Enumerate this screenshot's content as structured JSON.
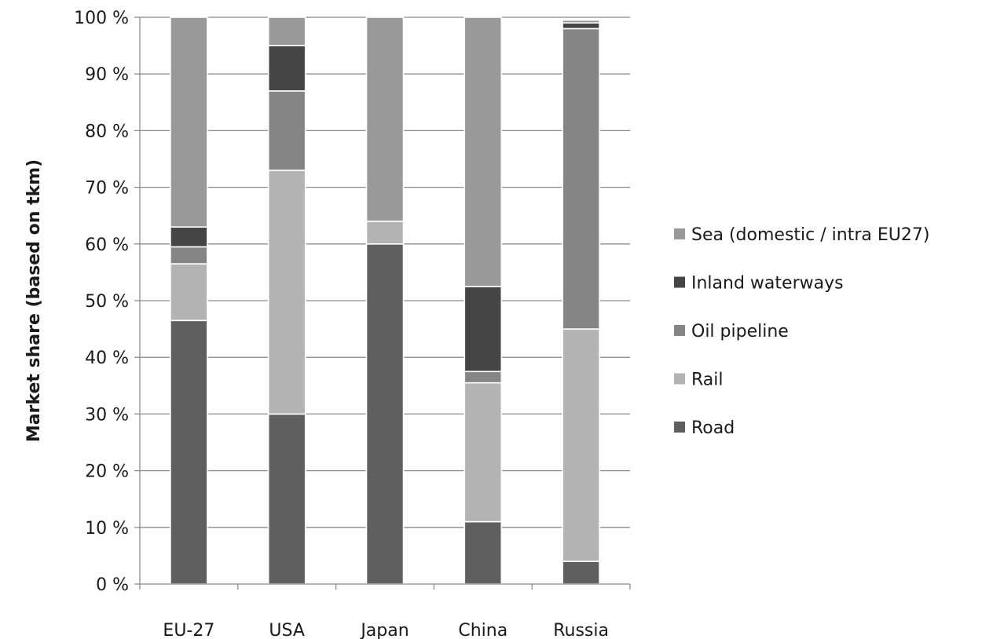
{
  "chart_data": {
    "type": "bar",
    "stacked": true,
    "categories": [
      "EU-27",
      "USA",
      "Japan",
      "China",
      "Russia"
    ],
    "ylabel": "Market share (based on tkm)",
    "xlabel": "",
    "ylim": [
      0,
      100
    ],
    "yticks": [
      "0 %",
      "10 %",
      "20 %",
      "30 %",
      "40 %",
      "50 %",
      "60 %",
      "70 %",
      "80 %",
      "90 %",
      "100 %"
    ],
    "grid": true,
    "legend_position": "right",
    "series": [
      {
        "name": "Road",
        "color": "#5f5f5f",
        "values": [
          46.5,
          30,
          60,
          11,
          4
        ]
      },
      {
        "name": "Rail",
        "color": "#b3b3b3",
        "values": [
          10,
          43,
          4,
          24.5,
          41
        ]
      },
      {
        "name": "Oil pipeline",
        "color": "#858585",
        "values": [
          3,
          14,
          0,
          2,
          53
        ]
      },
      {
        "name": "Inland waterways",
        "color": "#454545",
        "values": [
          3.5,
          8,
          0,
          15,
          1
        ]
      },
      {
        "name": "Sea (domestic / intra EU27)",
        "color": "#999999",
        "values": [
          37,
          5,
          36,
          47.5,
          0.5
        ]
      }
    ],
    "legend_order": [
      "Sea (domestic / intra EU27)",
      "Inland waterways",
      "Oil pipeline",
      "Rail",
      "Road"
    ]
  }
}
